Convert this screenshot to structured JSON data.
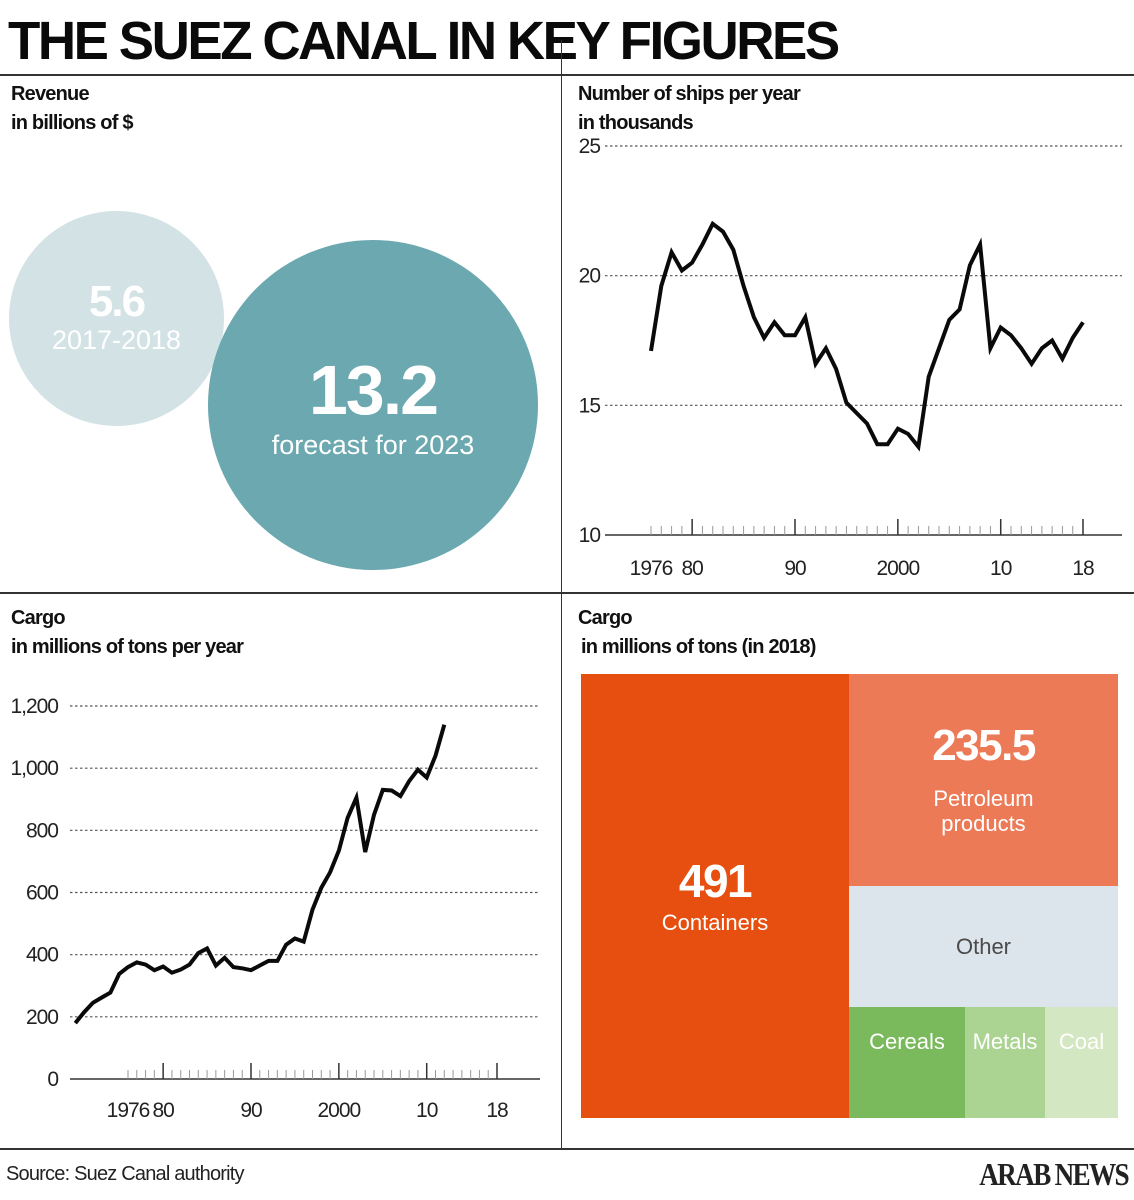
{
  "header": {
    "title": "THE SUEZ CANAL IN KEY FIGURES"
  },
  "revenue": {
    "title_line1": "Revenue",
    "title_line2": "in billions of $",
    "bubbles": [
      {
        "value": "5.6",
        "label": "2017-2018",
        "color": "#d3e2e5"
      },
      {
        "value": "13.2",
        "label": "forecast for 2023",
        "color": "#6ba8b0"
      }
    ]
  },
  "ships": {
    "title_line1": "Number of ships per year",
    "title_line2": "in thousands"
  },
  "cargo_line": {
    "title_line1": "Cargo",
    "title_line2": "in millions of tons per year"
  },
  "cargo_tree": {
    "title_line1": "Cargo",
    "title_line2": "in millions of tons (in 2018)"
  },
  "footer": {
    "source": "Source: Suez Canal authority",
    "logo": "ARAB NEWS"
  },
  "chart_data": [
    {
      "type": "bubble",
      "title": "Revenue in billions of $",
      "categories": [
        "2017-2018",
        "forecast for 2023"
      ],
      "values": [
        5.6,
        13.2
      ],
      "colors": [
        "#d3e2e5",
        "#6ba8b0"
      ]
    },
    {
      "type": "line",
      "title": "Number of ships per year in thousands",
      "xlabel": "",
      "ylabel": "",
      "ylim": [
        10,
        25
      ],
      "xlim": [
        1972,
        2021
      ],
      "yticks": [
        10,
        15,
        20,
        25
      ],
      "ytick_labels": [
        "10",
        "15",
        "20",
        "25"
      ],
      "xticks": [
        1976,
        1980,
        1990,
        2000,
        2010,
        2018
      ],
      "xtick_labels": [
        "1976",
        "80",
        "90",
        "2000",
        "10",
        "18"
      ],
      "grid": true,
      "x": [
        1976,
        1977,
        1978,
        1979,
        1980,
        1981,
        1982,
        1983,
        1984,
        1985,
        1986,
        1987,
        1988,
        1989,
        1990,
        1991,
        1992,
        1993,
        1994,
        1995,
        1996,
        1997,
        1998,
        1999,
        2000,
        2001,
        2002,
        2003,
        2004,
        2005,
        2006,
        2007,
        2008,
        2009,
        2010,
        2011,
        2012,
        2013,
        2014,
        2015,
        2016,
        2017,
        2018
      ],
      "series": [
        {
          "name": "Ships",
          "values": [
            17.1,
            19.6,
            20.9,
            20.2,
            20.5,
            21.2,
            22.0,
            21.7,
            21.0,
            19.6,
            18.4,
            17.6,
            18.2,
            17.7,
            17.7,
            18.4,
            16.6,
            17.2,
            16.4,
            15.1,
            14.7,
            14.3,
            13.5,
            13.5,
            14.1,
            13.9,
            13.4,
            16.1,
            17.2,
            18.3,
            18.7,
            20.4,
            21.2,
            17.2,
            18.0,
            17.7,
            17.2,
            16.6,
            17.2,
            17.5,
            16.8,
            17.6,
            18.2
          ]
        }
      ]
    },
    {
      "type": "line",
      "title": "Cargo in millions of tons per year",
      "xlabel": "",
      "ylabel": "",
      "ylim": [
        0,
        1200
      ],
      "xlim": [
        1970,
        2022
      ],
      "yticks": [
        0,
        200,
        400,
        600,
        800,
        1000,
        1200
      ],
      "ytick_labels": [
        "0",
        "200",
        "400",
        "600",
        "800",
        "1,000",
        "1,200"
      ],
      "xticks": [
        1976,
        1980,
        1990,
        2000,
        2010,
        2018
      ],
      "xtick_labels": [
        "1976",
        "80",
        "90",
        "2000",
        "10",
        "18"
      ],
      "grid": true,
      "x": [
        1970,
        1971,
        1972,
        1973,
        1974,
        1975,
        1976,
        1977,
        1978,
        1979,
        1980,
        1981,
        1982,
        1983,
        1984,
        1985,
        1986,
        1987,
        1988,
        1989,
        1990,
        1991,
        1992,
        1993,
        1994,
        1995,
        1996,
        1997,
        1998,
        1999,
        2000,
        2001,
        2002,
        2003,
        2004,
        2005,
        2006,
        2007,
        2008,
        2009,
        2010,
        2011,
        2012
      ],
      "series": [
        {
          "name": "Cargo",
          "values": [
            180,
            215,
            245,
            262,
            278,
            338,
            360,
            375,
            368,
            350,
            362,
            342,
            352,
            368,
            405,
            420,
            365,
            390,
            360,
            356,
            350,
            365,
            380,
            380,
            432,
            452,
            442,
            545,
            615,
            665,
            735,
            840,
            905,
            730,
            850,
            930,
            928,
            910,
            958,
            995,
            970,
            1040,
            1140
          ]
        }
      ]
    },
    {
      "type": "treemap",
      "title": "Cargo in millions of tons (in 2018)",
      "categories": [
        "Containers",
        "Petroleum products",
        "Other",
        "Cereals",
        "Metals",
        "Coal"
      ],
      "values": [
        491,
        235.5,
        null,
        null,
        null,
        null
      ],
      "value_labels": [
        "491",
        "235.5",
        "",
        "",
        "",
        ""
      ],
      "colors": [
        "#e64f0f",
        "#ec7a56",
        "#dce5eb",
        "#7aba5d",
        "#abd391",
        "#d4e7c3"
      ]
    }
  ]
}
